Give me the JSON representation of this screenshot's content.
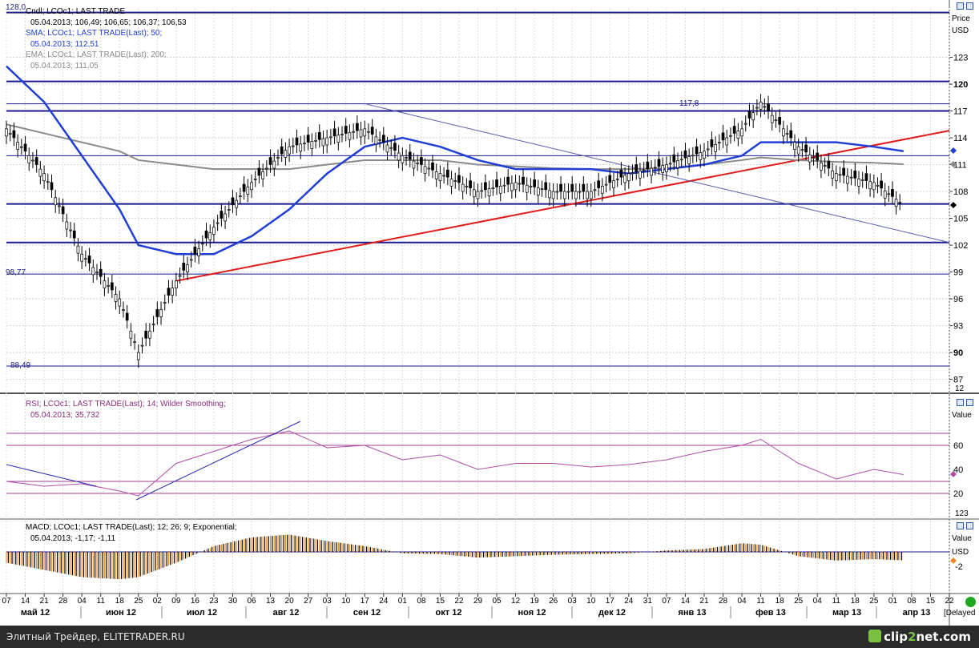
{
  "panes": {
    "price": {
      "legend": [
        {
          "text": "Cndl; LCOc1; LAST TRADE",
          "color": "#000000"
        },
        {
          "text": "05.04.2013; 106,49; 106,65; 106,37; 106,53",
          "color": "#000000"
        },
        {
          "text": "SMA; LCOc1; LAST TRADE(Last);  50;",
          "color": "#1f3fd6"
        },
        {
          "text": "05.04.2013; 112,51",
          "color": "#1f3fd6"
        },
        {
          "text": "EMA; LCOc1; LAST TRADE(Last);  200;",
          "color": "#8a8a8a"
        },
        {
          "text": "05.04.2013; 111,05",
          "color": "#8a8a8a"
        }
      ],
      "axis_title": "Price",
      "axis_unit": "USD",
      "ticks": [
        "123",
        "120",
        "117",
        "114",
        "111",
        "108",
        "105",
        "102",
        "99",
        "96",
        "93",
        "90",
        "87"
      ],
      "level_labels": {
        "top": "128,0",
        "mid": "98,77",
        "low": "88,49",
        "peak": "117,8"
      },
      "corner": "12"
    },
    "rsi": {
      "legend": [
        {
          "text": "RSI; LCOc1; LAST TRADE(Last);  14; Wilder Smoothing;",
          "color": "#8b2e7a"
        },
        {
          "text": "05.04.2013; 35,732",
          "color": "#8b2e7a"
        }
      ],
      "axis_title": "Value",
      "ticks": [
        "60",
        "40",
        "20"
      ],
      "corner": "123"
    },
    "macd": {
      "legend": [
        {
          "text": "MACD; LCOc1; LAST TRADE(Last);  12; 26; 9; Exponential;",
          "color": "#000000"
        },
        {
          "text": "05.04.2013; -1,17; -1,11",
          "color": "#000000"
        }
      ],
      "axis_title": "Value",
      "axis_unit": "USD",
      "ticks": [
        "-2"
      ]
    }
  },
  "date_ticks": [
    "07",
    "14",
    "21",
    "28",
    "04",
    "11",
    "18",
    "25",
    "02",
    "09",
    "16",
    "23",
    "30",
    "06",
    "13",
    "20",
    "27",
    "03",
    "10",
    "17",
    "24",
    "01",
    "08",
    "15",
    "22",
    "29",
    "05",
    "12",
    "19",
    "26",
    "03",
    "10",
    "17",
    "24",
    "31",
    "07",
    "14",
    "21",
    "28",
    "04",
    "11",
    "18",
    "25",
    "04",
    "11",
    "18",
    "25",
    "01",
    "08",
    "15",
    "22"
  ],
  "months": [
    "май 12",
    "июн 12",
    "июл 12",
    "авг 12",
    "сен 12",
    "окт 12",
    "ноя 12",
    "дек 12",
    "янв 13",
    "фев 13",
    "мар 13",
    "апр 13"
  ],
  "delayed": "[Delayed",
  "footer": {
    "credit": "Элитный Трейдер, ELITETRADER.RU",
    "logo_main": "clip",
    "logo_accent": "2",
    "logo_tail": "net.com"
  },
  "colors": {
    "candle": "#000000",
    "sma": "#1f3fd6",
    "ema": "#8a8a8a",
    "support": "#e01b1b",
    "level": "#1a1a8c",
    "rsi": "#b04ca8",
    "macd_pos": "#000000",
    "macd_neg": "#f08a1e"
  },
  "chart_data": {
    "type": "line",
    "title": "LCOc1",
    "y_unit": "USD",
    "x": [
      "2012-05-07",
      "2012-05-21",
      "2012-06-04",
      "2012-06-18",
      "2012-06-25",
      "2012-07-09",
      "2012-07-23",
      "2012-08-06",
      "2012-08-20",
      "2012-09-03",
      "2012-09-17",
      "2012-10-01",
      "2012-10-15",
      "2012-10-29",
      "2012-11-12",
      "2012-11-26",
      "2012-12-10",
      "2012-12-24",
      "2013-01-07",
      "2013-01-21",
      "2013-02-04",
      "2013-02-11",
      "2013-02-25",
      "2013-03-11",
      "2013-03-25",
      "2013-04-05"
    ],
    "series": [
      {
        "name": "Cndl LCOc1",
        "values": [
          115,
          110,
          101,
          96,
          90,
          98,
          104,
          109,
          113,
          114,
          115,
          112,
          110,
          108,
          109,
          108,
          108,
          110,
          111,
          112.5,
          115,
          118,
          113,
          110,
          109,
          106.5
        ]
      },
      {
        "name": "SMA 50",
        "values": [
          122,
          118,
          112,
          106,
          102,
          101,
          101,
          103,
          106,
          110,
          113,
          114,
          113,
          111.5,
          110.5,
          110.5,
          110.5,
          110,
          110.5,
          111,
          112,
          113.5,
          113.5,
          113.5,
          113,
          112.5
        ]
      },
      {
        "name": "EMA 200",
        "values": [
          115.5,
          114.5,
          113.5,
          112.5,
          111.5,
          111,
          110.5,
          110.5,
          110.5,
          111,
          111.5,
          111.5,
          111.5,
          111,
          110.8,
          110.6,
          110.5,
          110.5,
          110.6,
          111,
          111.5,
          111.8,
          111.5,
          111.3,
          111.2,
          111.05
        ]
      },
      {
        "name": "RSI 14",
        "values": [
          30,
          26,
          28,
          22,
          18,
          45,
          55,
          65,
          72,
          58,
          60,
          48,
          52,
          40,
          45,
          45,
          42,
          44,
          48,
          55,
          60,
          65,
          45,
          32,
          40,
          35.7
        ]
      },
      {
        "name": "MACD",
        "values": [
          -1.5,
          -2.5,
          -3.5,
          -3.8,
          -3.5,
          -1.5,
          0.8,
          2.0,
          2.4,
          1.5,
          0.8,
          -0.2,
          -0.3,
          -0.8,
          -0.6,
          -0.4,
          -0.3,
          -0.2,
          0.2,
          0.4,
          1.2,
          1.0,
          -0.6,
          -1.2,
          -1.0,
          -1.17
        ]
      }
    ],
    "ylim": [
      87,
      128
    ],
    "levels": [
      128.0,
      120.3,
      117.8,
      117.0,
      112.0,
      106.6,
      102.3,
      98.77,
      88.49
    ],
    "trendlines": [
      {
        "name": "support",
        "from": [
          "2012-07-09",
          98.0
        ],
        "to": [
          "2013-04-22",
          114.8
        ]
      },
      {
        "name": "resistance",
        "from": [
          "2012-09-17",
          117.8
        ],
        "to": [
          "2013-04-22",
          102.3
        ]
      }
    ],
    "rsi_levels": [
      70,
      60,
      30,
      20
    ],
    "grid": true
  }
}
